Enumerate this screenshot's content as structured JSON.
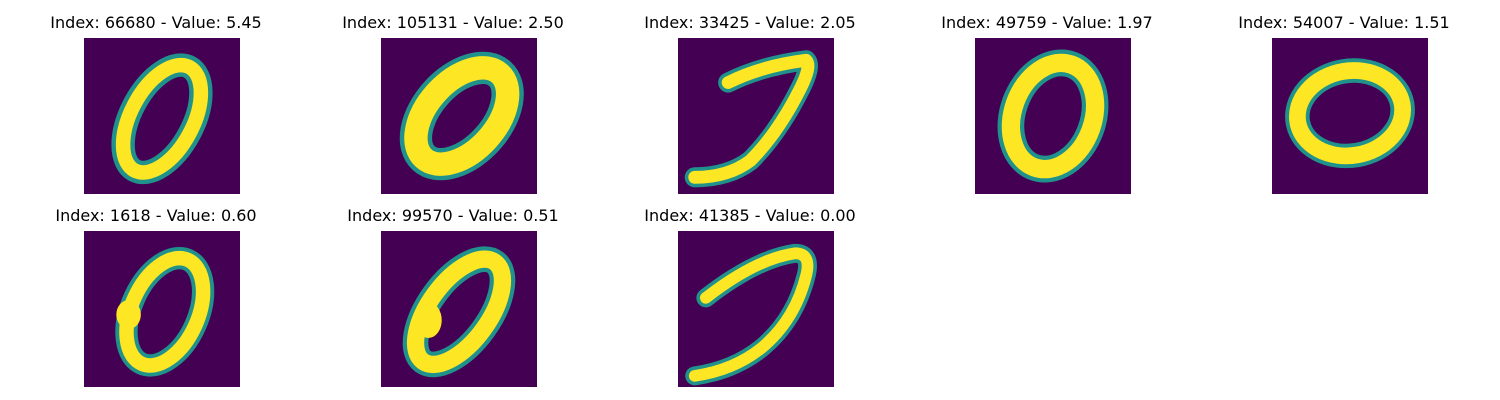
{
  "colors": {
    "background": "#440154",
    "edge": "#21918c",
    "stroke": "#fde725"
  },
  "panels": [
    {
      "title": "Index: 66680 - Value: 5.45",
      "digit": "zero-tilted"
    },
    {
      "title": "Index: 105131 - Value: 2.50",
      "digit": "zero-thick-tilted"
    },
    {
      "title": "Index: 33425 - Value: 2.05",
      "digit": "seven-like"
    },
    {
      "title": "Index: 49759 - Value: 1.97",
      "digit": "zero-round"
    },
    {
      "title": "Index: 54007 - Value: 1.51",
      "digit": "zero-wide"
    },
    {
      "title": "Index: 1618 - Value: 0.60",
      "digit": "zero-dented"
    },
    {
      "title": "Index: 99570 - Value: 0.51",
      "digit": "zero-thick-slanted"
    },
    {
      "title": "Index: 41385 - Value: 0.00",
      "digit": "seven-like-open"
    }
  ]
}
